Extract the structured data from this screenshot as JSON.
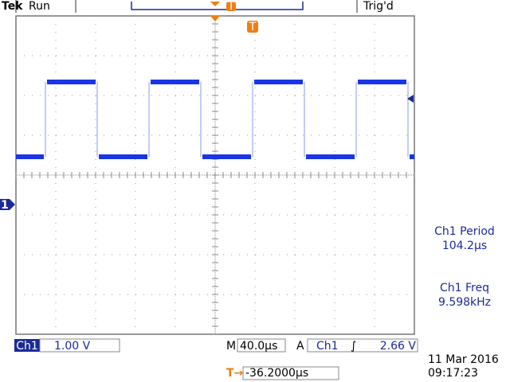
{
  "header": {
    "brand": "Tek",
    "state": "Run",
    "trigger_status": "Trig'd",
    "trigger_marker": "T"
  },
  "channel_marker": "1",
  "measurements": [
    {
      "label": "Ch1 Period",
      "value": "104.2µs"
    },
    {
      "label": "Ch1 Freq",
      "value": "9.598kHz"
    }
  ],
  "footer": {
    "channel": "Ch1",
    "volts_per_div": "1.00 V",
    "timebase_prefix": "M",
    "timebase": "40.0µs",
    "trigger_prefix": "A",
    "trigger_channel": "Ch1",
    "trigger_slope": "∫",
    "trigger_level": "2.66 V",
    "date": "11 Mar  2016",
    "time": "09:17:23",
    "position_icon": "T→",
    "position": "-36.2000µs"
  }
}
